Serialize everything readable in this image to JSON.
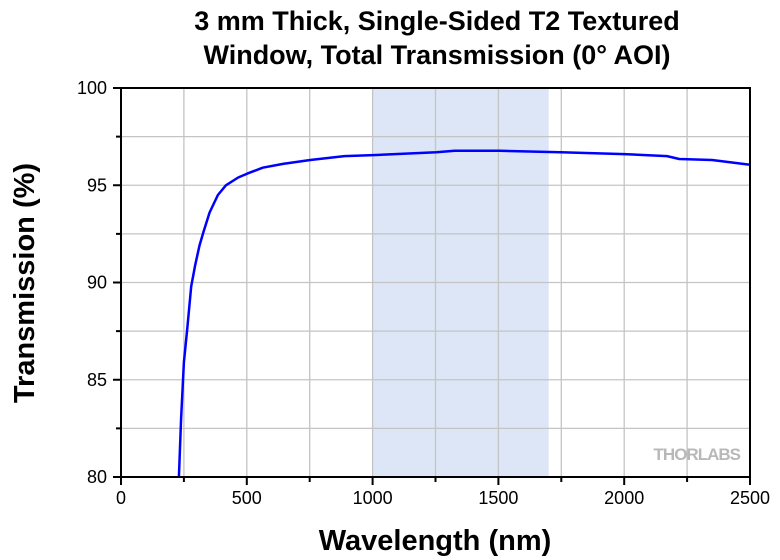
{
  "chart_data": {
    "type": "line",
    "title_line1": "3 mm Thick, Single-Sided T2 Textured",
    "title_line2": "Window, Total Transmission (0° AOI)",
    "xlabel": "Wavelength (nm)",
    "ylabel": "Transmission (%)",
    "xlim": [
      0,
      2500
    ],
    "ylim": [
      80,
      100
    ],
    "xticks": [
      0,
      500,
      1000,
      1500,
      2000,
      2500
    ],
    "yticks": [
      80,
      85,
      90,
      95,
      100
    ],
    "grid": true,
    "highlight_band": {
      "from": 1000,
      "to": 1700,
      "color": "#dde6f6"
    },
    "watermark": "THORLABS",
    "series": [
      {
        "name": "Total Transmission",
        "color": "#0000ff",
        "x": [
          230,
          239,
          250,
          263,
          279,
          295,
          312,
          328,
          352,
          385,
          417,
          466,
          502,
          563,
          644,
          752,
          888,
          1002,
          1253,
          1326,
          1505,
          1748,
          2000,
          2170,
          2219,
          2349,
          2500
        ],
        "y": [
          80.0,
          83.0,
          85.9,
          87.6,
          89.8,
          90.9,
          91.9,
          92.6,
          93.6,
          94.5,
          95.0,
          95.4,
          95.6,
          95.9,
          96.1,
          96.3,
          96.5,
          96.55,
          96.7,
          96.77,
          96.77,
          96.7,
          96.6,
          96.5,
          96.35,
          96.3,
          96.05
        ]
      }
    ]
  }
}
